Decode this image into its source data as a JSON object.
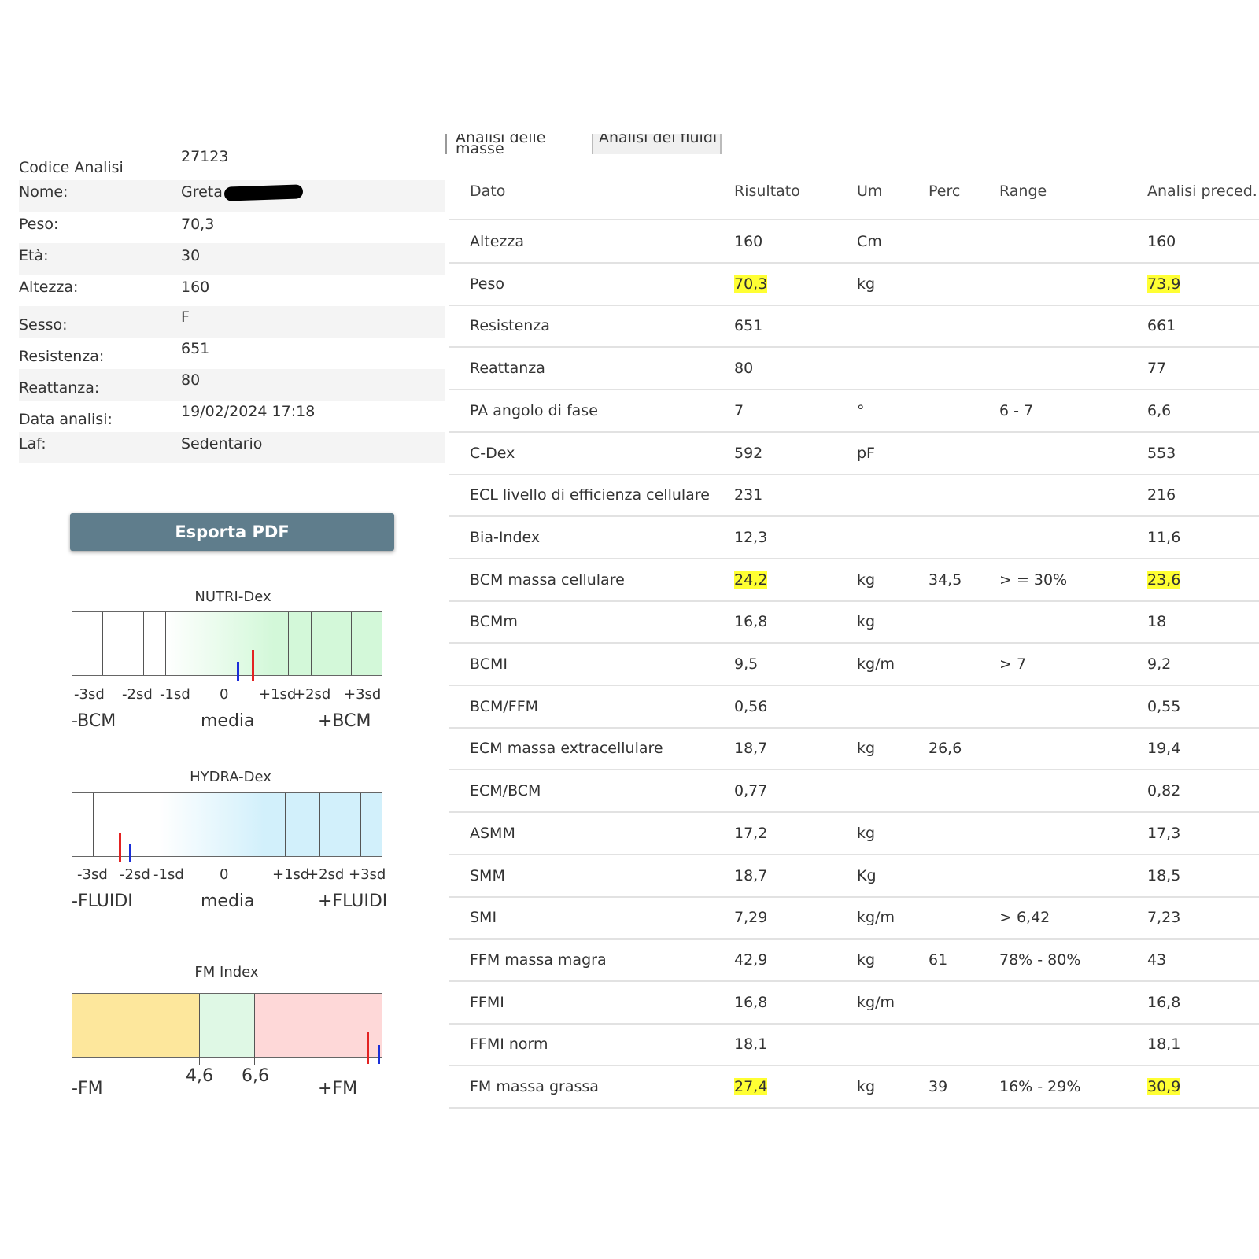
{
  "info": {
    "rows": [
      {
        "label": "Codice Analisi",
        "value": "27123"
      },
      {
        "label": "Nome:",
        "value": "Greta"
      },
      {
        "label": "Peso:",
        "value": "70,3"
      },
      {
        "label": "Età:",
        "value": "30"
      },
      {
        "label": "Altezza:",
        "value": "160"
      },
      {
        "label": "Sesso:",
        "value": "F"
      },
      {
        "label": "Resistenza:",
        "value": "651"
      },
      {
        "label": "Reattanza:",
        "value": "80"
      },
      {
        "label": "Data analisi:",
        "value": "19/02/2024 17:18"
      },
      {
        "label": "Laf:",
        "value": "Sedentario"
      }
    ]
  },
  "export_button": "Esporta PDF",
  "nutri": {
    "title": "NUTRI-Dex",
    "ticks": [
      "-3sd",
      "-2sd",
      "-1sd",
      "0",
      "+1sd",
      "+2sd",
      "+3sd"
    ],
    "low": "-BCM",
    "mid": "media",
    "high": "+BCM",
    "colors": {
      "current": "#e32222",
      "previous": "#1a2ed8",
      "fill": "#d3f8d9"
    }
  },
  "hydra": {
    "title": "HYDRA-Dex",
    "ticks": [
      "-3sd",
      "-2sd",
      "-1sd",
      "0",
      "+1sd",
      "+2sd",
      "+3sd"
    ],
    "low": "-FLUIDI",
    "mid": "media",
    "high": "+FLUIDI",
    "colors": {
      "current": "#e32222",
      "previous": "#1a2ed8",
      "fill": "#d2f0fb"
    }
  },
  "fm": {
    "title": "FM Index",
    "tick_low": "4,6",
    "tick_high": "6,6",
    "low": "-FM",
    "high": "+FM",
    "colors": {
      "low": "#fde79c",
      "mid": "#dff8e5",
      "high": "#fed8d8",
      "current": "#e32222",
      "previous": "#1a2ed8"
    }
  },
  "tabs": [
    "Analisi delle masse",
    "Analisi dei fluidi"
  ],
  "table": {
    "headers": [
      "Dato",
      "Risultato",
      "Um",
      "Perc",
      "Range",
      "Analisi preced."
    ],
    "rows": [
      {
        "dato": "Altezza",
        "risultato": "160",
        "um": "Cm",
        "perc": "",
        "range": "",
        "prec": "160"
      },
      {
        "dato": "Peso",
        "risultato": "70,3",
        "um": "kg",
        "perc": "",
        "range": "",
        "prec": "73,9"
      },
      {
        "dato": "Resistenza",
        "risultato": "651",
        "um": "",
        "perc": "",
        "range": "",
        "prec": "661"
      },
      {
        "dato": "Reattanza",
        "risultato": "80",
        "um": "",
        "perc": "",
        "range": "",
        "prec": "77"
      },
      {
        "dato": "PA angolo di fase",
        "risultato": "7",
        "um": "°",
        "perc": "",
        "range": "6 - 7",
        "prec": "6,6"
      },
      {
        "dato": "C-Dex",
        "risultato": "592",
        "um": "pF",
        "perc": "",
        "range": "",
        "prec": "553"
      },
      {
        "dato": "ECL livello di efficienza cellulare",
        "risultato": "231",
        "um": "",
        "perc": "",
        "range": "",
        "prec": "216"
      },
      {
        "dato": "Bia-Index",
        "risultato": "12,3",
        "um": "",
        "perc": "",
        "range": "",
        "prec": "11,6"
      },
      {
        "dato": "BCM massa cellulare",
        "risultato": "24,2",
        "um": "kg",
        "perc": "34,5",
        "range": "> = 30%",
        "prec": "23,6"
      },
      {
        "dato": "BCMm",
        "risultato": "16,8",
        "um": "kg",
        "perc": "",
        "range": "",
        "prec": "18"
      },
      {
        "dato": "BCMI",
        "risultato": "9,5",
        "um": "kg/m",
        "perc": "",
        "range": "> 7",
        "prec": "9,2"
      },
      {
        "dato": "BCM/FFM",
        "risultato": "0,56",
        "um": "",
        "perc": "",
        "range": "",
        "prec": "0,55"
      },
      {
        "dato": "ECM massa extracellulare",
        "risultato": "18,7",
        "um": "kg",
        "perc": "26,6",
        "range": "",
        "prec": "19,4"
      },
      {
        "dato": "ECM/BCM",
        "risultato": "0,77",
        "um": "",
        "perc": "",
        "range": "",
        "prec": "0,82"
      },
      {
        "dato": "ASMM",
        "risultato": "17,2",
        "um": "kg",
        "perc": "",
        "range": "",
        "prec": "17,3"
      },
      {
        "dato": "SMM",
        "risultato": "18,7",
        "um": "Kg",
        "perc": "",
        "range": "",
        "prec": "18,5"
      },
      {
        "dato": "SMI",
        "risultato": "7,29",
        "um": "kg/m",
        "perc": "",
        "range": "> 6,42",
        "prec": "7,23"
      },
      {
        "dato": "FFM massa magra",
        "risultato": "42,9",
        "um": "kg",
        "perc": "61",
        "range": "78% - 80%",
        "prec": "43"
      },
      {
        "dato": "FFMI",
        "risultato": "16,8",
        "um": "kg/m",
        "perc": "",
        "range": "",
        "prec": "16,8"
      },
      {
        "dato": "FFMI norm",
        "risultato": "18,1",
        "um": "",
        "perc": "",
        "range": "",
        "prec": "18,1"
      },
      {
        "dato": "FM massa grassa",
        "risultato": "27,4",
        "um": "kg",
        "perc": "39",
        "range": "16% - 29%",
        "prec": "30,9"
      }
    ]
  }
}
